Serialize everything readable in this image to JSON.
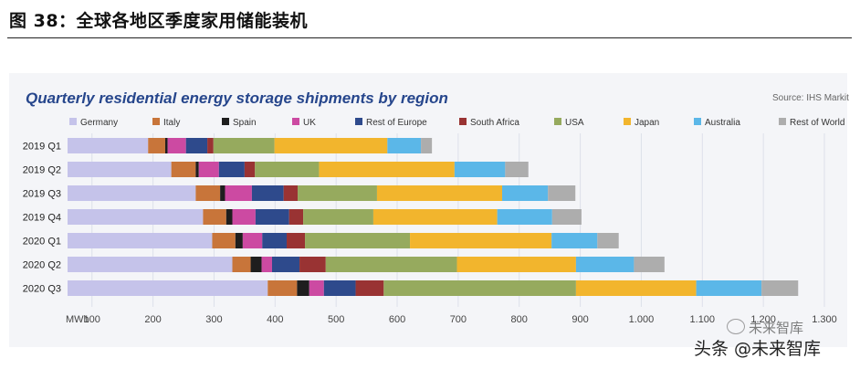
{
  "figure": {
    "title": "图 38：全球各地区季度家用储能装机",
    "source": "Source: IHS Markit",
    "watermark_small": "未来智库",
    "watermark": "头条 @未来智库"
  },
  "chart_data": {
    "type": "bar",
    "orientation": "horizontal",
    "stacked": true,
    "title": "Quarterly residential energy storage shipments by region",
    "xlabel": "MWh",
    "ylabel": "",
    "xlim": [
      60,
      1300
    ],
    "x_ticks": [
      100,
      200,
      300,
      400,
      500,
      600,
      700,
      800,
      900,
      1000,
      1100,
      1200,
      1300
    ],
    "x_tick_labels": [
      "100",
      "200",
      "300",
      "400",
      "500",
      "600",
      "700",
      "800",
      "900",
      "1.000",
      "1.100",
      "1.200",
      "1.300"
    ],
    "legend_position": "top",
    "grid": true,
    "categories": [
      "2019 Q1",
      "2019 Q2",
      "2019 Q3",
      "2019 Q4",
      "2020 Q1",
      "2020 Q2",
      "2020 Q3"
    ],
    "series": [
      {
        "name": "Germany",
        "color": "#c5c3ea",
        "values": [
          132,
          170,
          210,
          222,
          237,
          270,
          328
        ]
      },
      {
        "name": "Italy",
        "color": "#c8753a",
        "values": [
          28,
          40,
          40,
          38,
          38,
          30,
          48
        ]
      },
      {
        "name": "Spain",
        "color": "#1e1e1e",
        "values": [
          4,
          5,
          8,
          10,
          12,
          18,
          20
        ]
      },
      {
        "name": "UK",
        "color": "#cc4aa2",
        "values": [
          30,
          33,
          44,
          38,
          32,
          17,
          24
        ]
      },
      {
        "name": "Rest of Europe",
        "color": "#2e4a8c",
        "values": [
          35,
          42,
          52,
          55,
          40,
          45,
          52
        ]
      },
      {
        "name": "South Africa",
        "color": "#993333",
        "values": [
          10,
          17,
          23,
          23,
          30,
          43,
          46
        ]
      },
      {
        "name": "USA",
        "color": "#96aa5e",
        "values": [
          100,
          105,
          130,
          115,
          172,
          215,
          315
        ]
      },
      {
        "name": "Japan",
        "color": "#f2b52d",
        "values": [
          185,
          222,
          205,
          203,
          232,
          195,
          197
        ]
      },
      {
        "name": "Australia",
        "color": "#5bb7e8",
        "values": [
          55,
          83,
          75,
          90,
          75,
          95,
          107
        ]
      },
      {
        "name": "Rest of World",
        "color": "#adadad",
        "values": [
          18,
          38,
          45,
          48,
          35,
          50,
          60
        ]
      }
    ]
  }
}
